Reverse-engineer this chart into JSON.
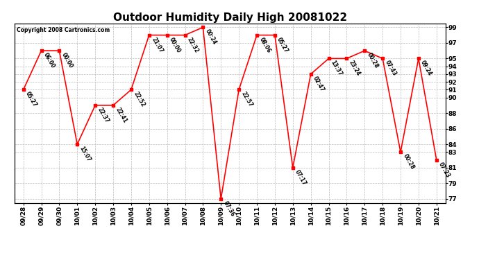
{
  "title": "Outdoor Humidity Daily High 20081022",
  "copyright": "Copyright 2008 Cartronics.com",
  "background_color": "#ffffff",
  "plot_bg_color": "#ffffff",
  "grid_color": "#bbbbbb",
  "line_color": "#ff0000",
  "marker_color": "#ff0000",
  "text_color": "#000000",
  "dates": [
    "09/28",
    "09/29",
    "09/30",
    "10/01",
    "10/02",
    "10/03",
    "10/04",
    "10/05",
    "10/06",
    "10/07",
    "10/08",
    "10/09",
    "10/10",
    "10/11",
    "10/12",
    "10/13",
    "10/14",
    "10/15",
    "10/16",
    "10/17",
    "10/18",
    "10/19",
    "10/20",
    "10/21"
  ],
  "values": [
    91,
    96,
    96,
    84,
    89,
    89,
    91,
    98,
    98,
    98,
    99,
    77,
    91,
    98,
    98,
    81,
    93,
    95,
    95,
    96,
    95,
    83,
    95,
    82
  ],
  "labels": [
    "05:27",
    "06:00",
    "00:00",
    "15:07",
    "22:37",
    "22:41",
    "22:52",
    "21:07",
    "00:00",
    "22:32",
    "00:24",
    "07:36",
    "22:57",
    "08:06",
    "05:27",
    "07:17",
    "02:47",
    "13:37",
    "23:24",
    "00:28",
    "07:43",
    "00:28",
    "09:24",
    "07:23"
  ],
  "ylim_min": 76.5,
  "ylim_max": 99.5,
  "yticks": [
    77,
    79,
    81,
    83,
    84,
    86,
    88,
    90,
    91,
    92,
    93,
    94,
    95,
    97,
    99
  ],
  "title_fontsize": 11,
  "label_fontsize": 5.5,
  "tick_fontsize": 6.5,
  "copyright_fontsize": 5.5,
  "linewidth": 1.2,
  "marker_size": 8
}
